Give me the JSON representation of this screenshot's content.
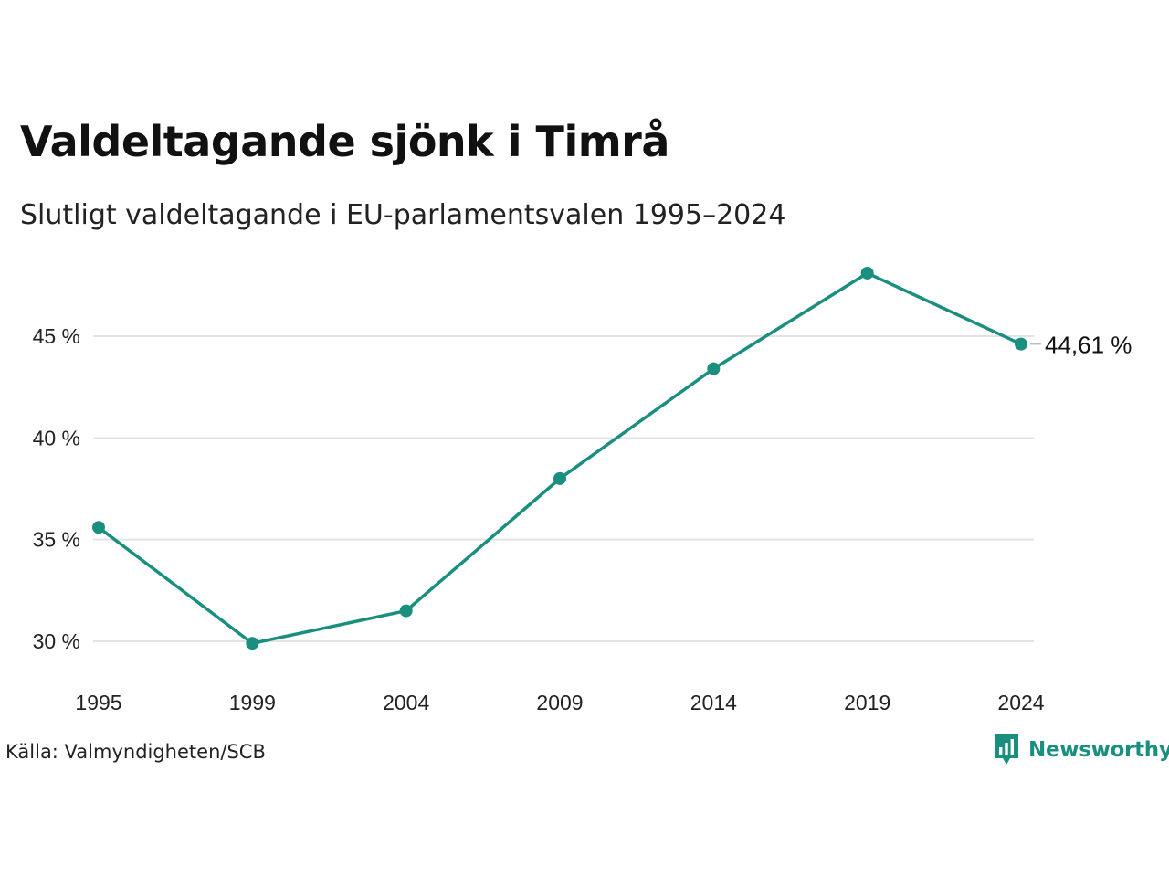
{
  "chart_data": {
    "type": "line",
    "title": "Valdeltagande sjönk i Timrå",
    "subtitle": "Slutligt valdeltagande i EU-parlamentsvalen 1995–2024",
    "x": [
      "1995",
      "1999",
      "2004",
      "2009",
      "2014",
      "2019",
      "2024"
    ],
    "series": [
      {
        "values": [
          35.6,
          29.9,
          31.5,
          38.0,
          43.4,
          48.1,
          44.61
        ],
        "color": "#1a8f7f"
      }
    ],
    "y_ticks": [
      30,
      35,
      40,
      45
    ],
    "y_tick_labels": [
      "30 %",
      "35 %",
      "40 %",
      "45 %"
    ],
    "ylim": [
      28,
      48
    ],
    "end_label": "44,61 %",
    "grid": true,
    "gridline_color": "#e3e3e3",
    "source": "Källa: Valmyndigheten/SCB"
  },
  "brand": {
    "name": "Newsworthy",
    "icon": "bar-chart-speech-bubble-icon",
    "color": "#1a8f7f"
  }
}
